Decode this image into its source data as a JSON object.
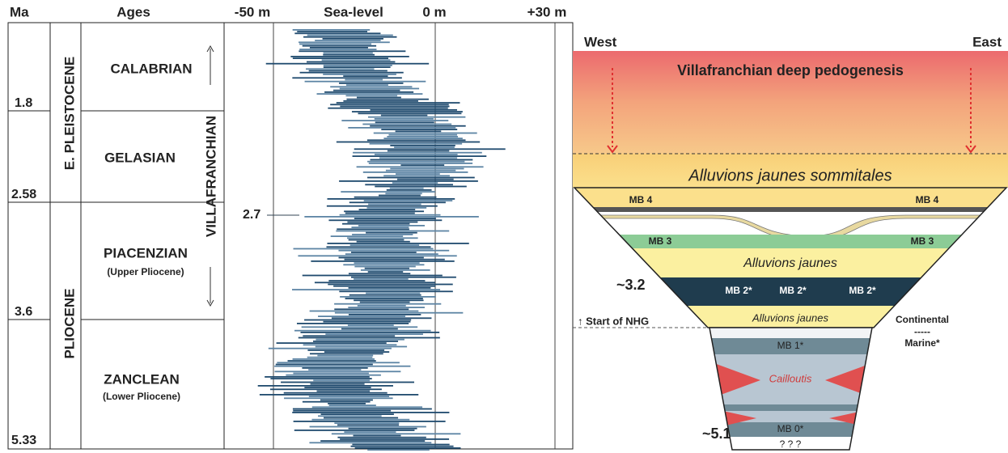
{
  "header": {
    "ma": "Ma",
    "ages": "Ages",
    "minus50": "-50 m",
    "sea_level": "Sea-level",
    "zero": "0 m",
    "plus30": "+30 m"
  },
  "ma_ticks": [
    "1.8",
    "2.58",
    "3.6",
    "5.33"
  ],
  "epochs": [
    "E. PLEISTOCENE",
    "PLIOCENE"
  ],
  "ages": [
    {
      "name": "CALABRIAN"
    },
    {
      "name": "GELASIAN"
    },
    {
      "name": "PIACENZIAN",
      "note": "(Upper Pliocene)"
    },
    {
      "name": "ZANCLEAN",
      "note": "(Lower Pliocene)"
    }
  ],
  "villafranchian": "VILLAFRANCHIAN",
  "marker_27": "2.7",
  "section": {
    "west": "West",
    "east": "East",
    "pedogenesis": "Villafranchian deep pedogenesis",
    "sommitales": "Alluvions jaunes sommitales",
    "mb4": "MB 4",
    "mb3": "MB 3",
    "alluvions_upper": "Alluvions jaunes",
    "age_32": "~3.2",
    "mb2": "MB 2*",
    "alluvions_lower": "Alluvions jaunes",
    "nhg": "↑ Start of NHG",
    "continental": "Continental",
    "separator": "-----",
    "marine": "Marine*",
    "mb1": "MB 1*",
    "cailloutis": "Cailloutis",
    "mb0": "MB 0*",
    "age_51": "~5.1",
    "unknown": "? ? ?"
  }
}
